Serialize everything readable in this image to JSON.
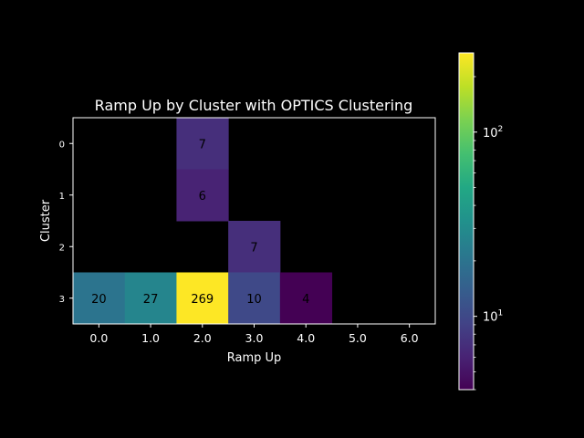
{
  "chart_data": {
    "type": "heatmap",
    "title": "Ramp Up by Cluster with OPTICS Clustering",
    "xlabel": "Ramp Up",
    "ylabel": "Cluster",
    "x_categories": [
      "0.0",
      "1.0",
      "2.0",
      "3.0",
      "4.0",
      "5.0",
      "6.0"
    ],
    "y_categories": [
      "0",
      "1",
      "2",
      "3"
    ],
    "cells": [
      {
        "x": "2.0",
        "y": "0",
        "value": 7
      },
      {
        "x": "2.0",
        "y": "1",
        "value": 6
      },
      {
        "x": "3.0",
        "y": "2",
        "value": 7
      },
      {
        "x": "0.0",
        "y": "3",
        "value": 20
      },
      {
        "x": "1.0",
        "y": "3",
        "value": 27
      },
      {
        "x": "2.0",
        "y": "3",
        "value": 269
      },
      {
        "x": "3.0",
        "y": "3",
        "value": 10
      },
      {
        "x": "4.0",
        "y": "3",
        "value": 4
      }
    ],
    "colorbar": {
      "scale": "log",
      "colormap": "viridis",
      "range": [
        4,
        269
      ],
      "major_ticks": [
        {
          "value": 10,
          "base": "10",
          "exp": "1"
        },
        {
          "value": 100,
          "base": "10",
          "exp": "2"
        }
      ],
      "minor_ticks": [
        4,
        5,
        6,
        7,
        8,
        9,
        20,
        30,
        40,
        50,
        60,
        70,
        80,
        90,
        200
      ]
    },
    "grid": false,
    "background": "#000000",
    "foreground": "#ffffff"
  }
}
